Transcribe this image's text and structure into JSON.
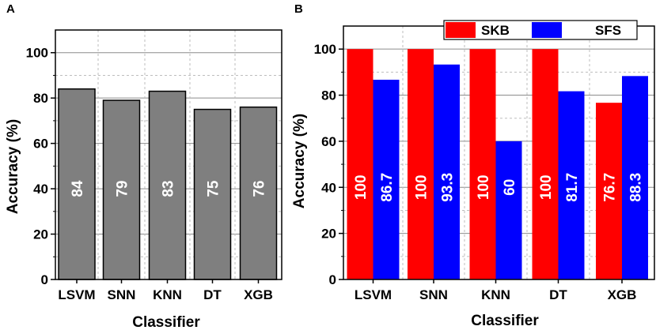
{
  "chart_data": [
    {
      "panel": "A",
      "type": "bar",
      "categories": [
        "LSVM",
        "SNN",
        "KNN",
        "DT",
        "XGB"
      ],
      "series": [
        {
          "name": "Accuracy",
          "values": [
            84,
            79,
            83,
            75,
            76
          ],
          "color": "#7f7f7f"
        }
      ],
      "value_labels": [
        "84",
        "79",
        "83",
        "75",
        "76"
      ],
      "xlabel": "Classifier",
      "ylabel": "Accuracy (%)",
      "ylim": [
        0,
        110
      ],
      "yticks": [
        0,
        20,
        40,
        60,
        80,
        100
      ],
      "grid": true
    },
    {
      "panel": "B",
      "type": "bar",
      "categories": [
        "LSVM",
        "SNN",
        "KNN",
        "DT",
        "XGB"
      ],
      "series": [
        {
          "name": "SKB",
          "values": [
            100,
            100,
            100,
            100,
            76.7
          ],
          "labels": [
            "100",
            "100",
            "100",
            "100",
            "76.7"
          ],
          "color": "#ff0000"
        },
        {
          "name": "SFS",
          "values": [
            86.7,
            93.3,
            60,
            81.7,
            88.3
          ],
          "labels": [
            "86.7",
            "93.3",
            "60",
            "81.7",
            "88.3"
          ],
          "color": "#0000ff"
        }
      ],
      "xlabel": "Classifier",
      "ylabel": "Accuracy (%)",
      "ylim": [
        0,
        110
      ],
      "yticks": [
        0,
        20,
        40,
        60,
        80,
        100
      ],
      "legend": "top",
      "grid": true
    }
  ]
}
